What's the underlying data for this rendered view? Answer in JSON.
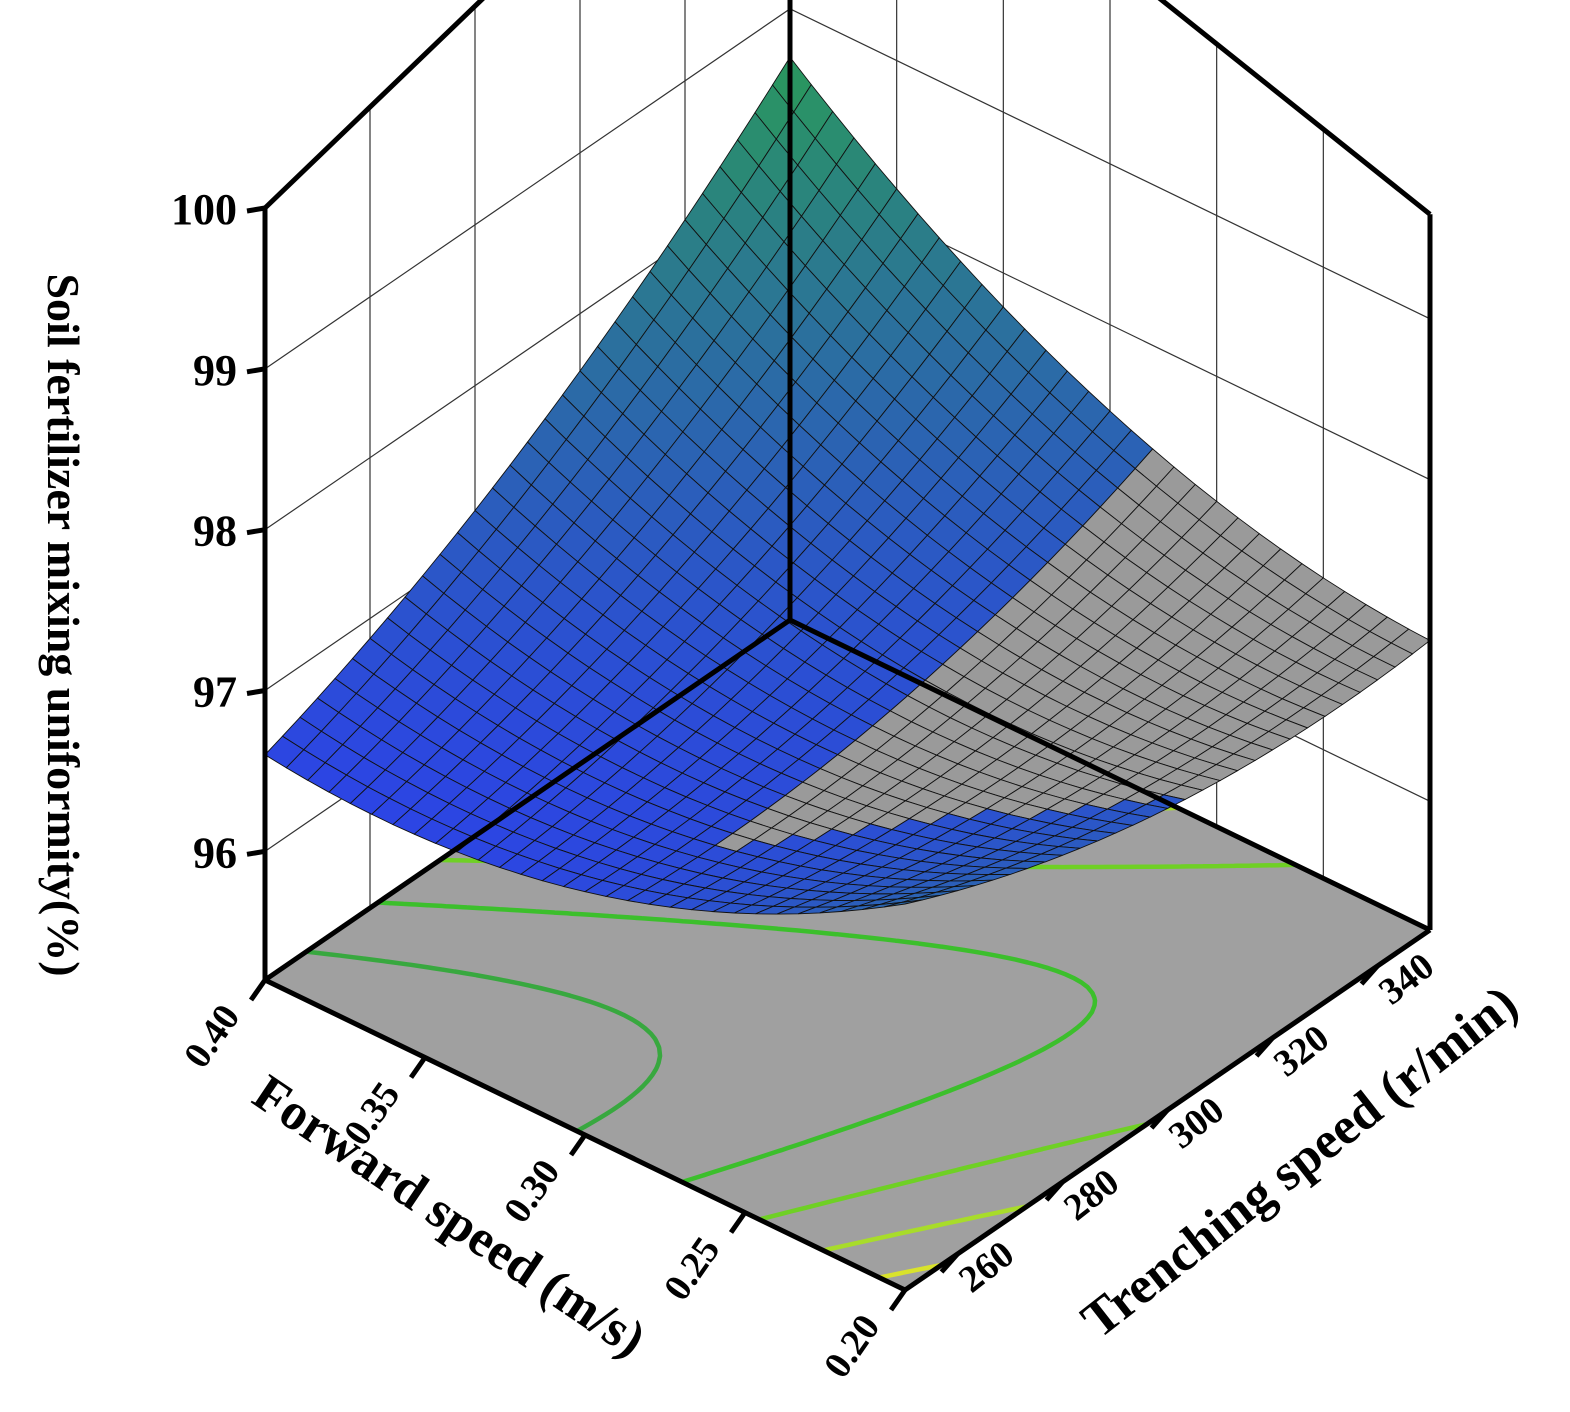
{
  "chart_data": {
    "type": "surface3d",
    "title": "",
    "x_axis": {
      "label": "Forward speed (m/s)",
      "ticks": [
        "0.20",
        "0.25",
        "0.30",
        "0.35",
        "0.40"
      ],
      "range": [
        0.2,
        0.4
      ]
    },
    "y_axis": {
      "label": "Trenching speed (r/min)",
      "ticks": [
        "260",
        "280",
        "300",
        "320",
        "340"
      ],
      "range": [
        250,
        350
      ]
    },
    "z_axis": {
      "label": "Soil fertilizer mixing uniformity(%)",
      "ticks": [
        "96",
        "97",
        "98",
        "99",
        "100"
      ],
      "range": [
        95.2,
        100
      ]
    },
    "corner_values": [
      {
        "forward_speed": 0.2,
        "trenching_speed": 250,
        "uniformity": 97.6
      },
      {
        "forward_speed": 0.4,
        "trenching_speed": 250,
        "uniformity": 96.6
      },
      {
        "forward_speed": 0.2,
        "trenching_speed": 350,
        "uniformity": 97.0
      },
      {
        "forward_speed": 0.4,
        "trenching_speed": 350,
        "uniformity": 98.7
      }
    ],
    "minimum": {
      "forward_speed": 0.32,
      "trenching_speed": 275,
      "uniformity": 95.95
    },
    "contour_colors": [
      "#4a63d8",
      "#3f7fa8",
      "#3a9a7a",
      "#38a83f",
      "#3cbf2c",
      "#6fd025",
      "#a8dc2a",
      "#d9e32c"
    ],
    "surface_colors": {
      "low": "#2c34ff",
      "high": "#2a9a5a",
      "shadow": "#9a9a9a"
    },
    "floor_color": "#a0a0a0",
    "grid": true
  }
}
